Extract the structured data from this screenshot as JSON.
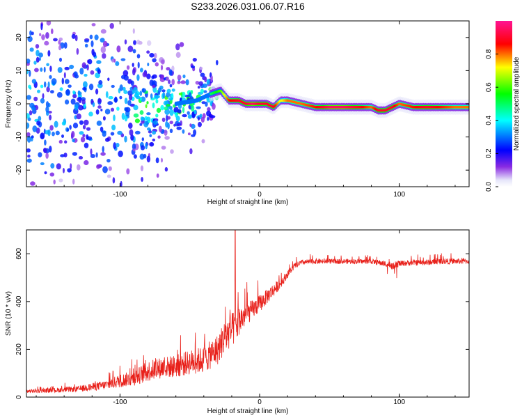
{
  "figure_title": "S233.2026.031.06.07.R16",
  "chart_data": [
    {
      "type": "heatmap",
      "title": "S233.2026.031.06.07.R16",
      "xlabel": "Height of straight line (km)",
      "ylabel": "Frequency (Hz)",
      "xlim": [
        -167,
        150
      ],
      "ylim": [
        -25,
        25
      ],
      "xticks": [
        -100,
        0,
        100
      ],
      "xtick_labels": [
        "-100",
        "0",
        "100"
      ],
      "yticks": [
        -20,
        -10,
        0,
        10,
        20
      ],
      "ytick_labels": [
        "-20",
        "-10",
        "0",
        "10",
        "20"
      ],
      "colorbar": {
        "label": "Normalized spectral amplitude",
        "range": [
          0,
          1
        ],
        "ticks": [
          0.0,
          0.2,
          0.4,
          0.6,
          0.8
        ],
        "tick_labels": [
          "0.0",
          "0.2",
          "0.4",
          "0.6",
          "0.8"
        ],
        "colors": [
          "#e6e6fa",
          "#8a2be2",
          "#0000ff",
          "#00ffff",
          "#00ff00",
          "#ffff00",
          "#ff0000",
          "#ff1493"
        ]
      },
      "ridge": {
        "x": [
          -167,
          -140,
          -120,
          -100,
          -80,
          -60,
          -45,
          -35,
          -28,
          -22,
          -15,
          -10,
          -5,
          0,
          5,
          10,
          15,
          20,
          30,
          40,
          50,
          60,
          70,
          80,
          85,
          90,
          95,
          100,
          110,
          120,
          130,
          140,
          150
        ],
        "frequency": [
          0,
          2,
          1,
          0,
          -1,
          0,
          1,
          3,
          4,
          1,
          1,
          0,
          0,
          0,
          0,
          -1,
          1,
          1,
          0,
          -1,
          -1,
          -1,
          -1,
          -1,
          -2,
          -2,
          -1,
          0,
          -1,
          -1,
          -1,
          -1,
          -1
        ],
        "amplitude": [
          0.3,
          0.3,
          0.3,
          0.3,
          0.35,
          0.4,
          0.45,
          0.5,
          0.6,
          0.85,
          0.9,
          0.9,
          0.95,
          0.9,
          0.9,
          0.9,
          0.7,
          0.8,
          0.8,
          0.85,
          0.95,
          0.95,
          0.9,
          0.8,
          0.9,
          0.9,
          0.9,
          0.8,
          0.85,
          0.9,
          0.85,
          0.8,
          0.8
        ]
      }
    },
    {
      "type": "line",
      "xlabel": "Height of straight line (km)",
      "ylabel": "SNR (10 * v/v)",
      "xlim": [
        -167,
        150
      ],
      "ylim": [
        0,
        700
      ],
      "xticks": [
        -100,
        0,
        100
      ],
      "xtick_labels": [
        "-100",
        "0",
        "100"
      ],
      "yticks": [
        0,
        200,
        400,
        600
      ],
      "ytick_labels": [
        "0",
        "200",
        "400",
        "600"
      ],
      "color": "#e8201a",
      "series": [
        {
          "name": "SNR",
          "x": [
            -167,
            -150,
            -130,
            -110,
            -100,
            -90,
            -80,
            -70,
            -60,
            -50,
            -40,
            -30,
            -25,
            -20,
            -17,
            -15,
            -10,
            -5,
            0,
            5,
            10,
            15,
            20,
            25,
            30,
            40,
            60,
            80,
            90,
            95,
            100,
            110,
            120,
            130,
            140,
            150
          ],
          "mean": [
            22,
            25,
            30,
            45,
            60,
            70,
            95,
            110,
            115,
            130,
            140,
            180,
            230,
            260,
            270,
            300,
            330,
            355,
            380,
            410,
            440,
            470,
            510,
            545,
            560,
            565,
            565,
            565,
            555,
            545,
            555,
            560,
            560,
            565,
            565,
            565
          ],
          "noise": [
            10,
            12,
            15,
            25,
            35,
            40,
            55,
            55,
            60,
            65,
            70,
            80,
            90,
            90,
            90,
            80,
            60,
            50,
            45,
            40,
            35,
            25,
            20,
            15,
            14,
            14,
            13,
            13,
            15,
            20,
            15,
            15,
            15,
            15,
            15,
            15
          ],
          "spike": {
            "x": -17.5,
            "value": 700
          }
        }
      ]
    }
  ]
}
